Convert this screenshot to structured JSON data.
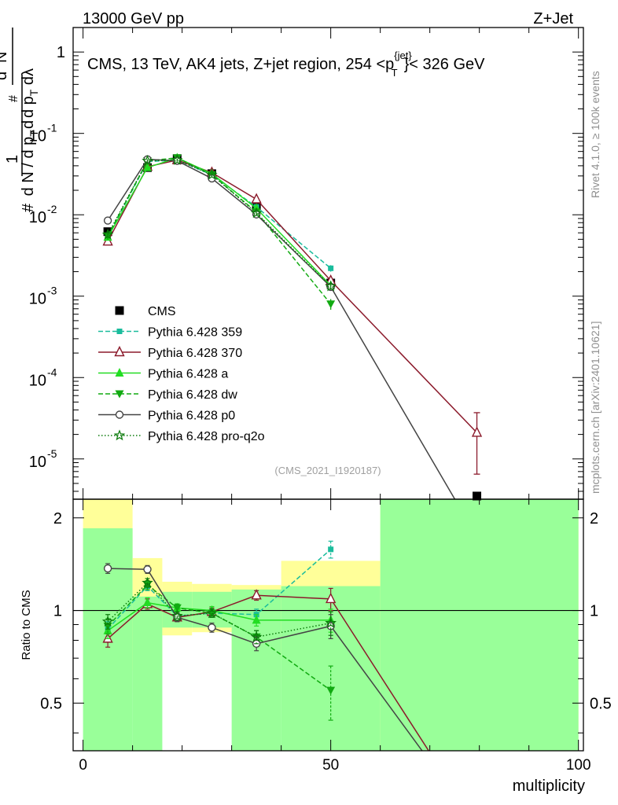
{
  "header": {
    "left": "13000 GeV pp",
    "right": "Z+Jet"
  },
  "chart_data": {
    "type": "line",
    "title": "CMS, 13 TeV, AK4 jets, Z+jet region, 254 <p_T^{jet}< 326 GeV",
    "title_parts": [
      "CMS, 13 TeV, AK4 jets, Z+jet region, 254 <p",
      "{jet}",
      "T",
      "}< 326 GeV"
    ],
    "xlabel": "multiplicity",
    "ylabel_top_parts": [
      "1",
      "#",
      "d N / d p",
      "T",
      "#",
      "d",
      "2",
      "N",
      "d p",
      "T",
      " dλ"
    ],
    "ylabel_bottom": "Ratio to CMS",
    "xlim": [
      -2,
      101
    ],
    "ylim_main": [
      3.2e-06,
      2.0
    ],
    "ylim_ratio": [
      0.35,
      2.3
    ],
    "x_ticks": [
      "0",
      "50",
      "100"
    ],
    "y_ticks_main": [
      "10^{-5}",
      "10^{-4}",
      "10^{-3}",
      "10^{-2}",
      "10^{-1}",
      "1"
    ],
    "y_ticks_ratio": [
      "0.5",
      "1",
      "2"
    ],
    "watermark": "(CMS_2021_I1920187)",
    "side_text_top": "Rivet 4.1.0, ≥ 100k events",
    "side_text_bottom": "mcplots.cern.ch [arXiv:2401.10621]",
    "bins": [
      [
        0,
        10
      ],
      [
        10,
        16
      ],
      [
        16,
        22
      ],
      [
        22,
        30
      ],
      [
        30,
        40
      ],
      [
        40,
        60
      ],
      [
        60,
        100
      ]
    ],
    "band_yellow": [
      [
        0.6,
        2.3
      ],
      [
        0.64,
        1.48
      ],
      [
        0.83,
        1.24
      ],
      [
        0.85,
        1.22
      ],
      [
        0.69,
        1.21
      ],
      [
        0.69,
        1.45
      ],
      [
        0.35,
        2.3
      ]
    ],
    "band_green": [
      [
        0.35,
        1.85
      ],
      [
        0.35,
        1.11
      ],
      [
        0.88,
        1.15
      ],
      [
        0.88,
        1.15
      ],
      [
        0.35,
        1.17
      ],
      [
        0.35,
        1.2
      ],
      [
        0.35,
        2.3
      ]
    ],
    "series": [
      {
        "name": "CMS",
        "color": "#000000",
        "marker": "square",
        "dash": "none",
        "x": [
          5,
          13,
          19,
          26,
          35,
          50,
          79.5
        ],
        "y": [
          0.0062,
          0.038,
          0.049,
          0.032,
          0.013,
          0.00145,
          3.5e-06
        ],
        "yerr_lo": [
          0.0006,
          0.003,
          0.003,
          0.002,
          0.001,
          0.00012,
          0
        ],
        "yerr_hi": [
          0.0006,
          0.003,
          0.003,
          0.002,
          0.001,
          0.00012,
          0
        ],
        "ratio": [
          1,
          1,
          1,
          1,
          1,
          1,
          1
        ]
      },
      {
        "name": "Pythia 6.428 359",
        "color": "#1abc9c",
        "marker": "square-small",
        "dash": "6,3",
        "x": [
          5,
          13,
          19,
          26,
          35,
          50
        ],
        "y": [
          0.0054,
          0.045,
          0.047,
          0.031,
          0.0125,
          0.0022
        ],
        "yerr_lo": [
          0.0003,
          0.002,
          0.002,
          0.0015,
          0.0007,
          0.0002
        ],
        "yerr_hi": [
          0.0003,
          0.002,
          0.002,
          0.0015,
          0.0007,
          0.0002
        ],
        "ratio": [
          0.87,
          1.2,
          0.96,
          0.98,
          0.97,
          1.58
        ],
        "ratio_err": [
          0.05,
          0.04,
          0.03,
          0.03,
          0.04,
          0.1
        ]
      },
      {
        "name": "Pythia 6.428 370",
        "color": "#8b1a2b",
        "marker": "triangle-open",
        "dash": "none",
        "x": [
          5,
          13,
          19,
          26,
          35,
          50,
          79.5
        ],
        "y": [
          0.0047,
          0.039,
          0.047,
          0.033,
          0.0155,
          0.00155,
          2.1e-05
        ],
        "yerr_lo": [
          0.0003,
          0.002,
          0.002,
          0.0015,
          0.0008,
          0.00015,
          1.45e-05
        ],
        "yerr_hi": [
          0.0003,
          0.002,
          0.002,
          0.0015,
          0.0008,
          0.00015,
          1.6e-05
        ],
        "ratio": [
          0.81,
          1.05,
          0.95,
          0.99,
          1.12,
          1.09,
          0.2
        ],
        "ratio_err": [
          0.05,
          0.04,
          0.03,
          0.03,
          0.04,
          0.09,
          0
        ]
      },
      {
        "name": "Pythia 6.428 a",
        "color": "#22dd22",
        "marker": "triangle",
        "dash": "none",
        "x": [
          5,
          13,
          19,
          26,
          35,
          50
        ],
        "y": [
          0.0053,
          0.038,
          0.05,
          0.032,
          0.012,
          0.00135
        ],
        "yerr_lo": [
          0.0003,
          0.002,
          0.002,
          0.0015,
          0.0007,
          0.00012
        ],
        "yerr_hi": [
          0.0003,
          0.002,
          0.002,
          0.0015,
          0.0007,
          0.00012
        ],
        "ratio": [
          0.86,
          1.06,
          1.02,
          1.0,
          0.93,
          0.93
        ],
        "ratio_err": [
          0.05,
          0.04,
          0.03,
          0.03,
          0.04,
          0.08
        ]
      },
      {
        "name": "Pythia 6.428 dw",
        "color": "#11aa11",
        "marker": "triangle-down",
        "dash": "6,3",
        "x": [
          5,
          13,
          19,
          26,
          35,
          50
        ],
        "y": [
          0.0055,
          0.046,
          0.05,
          0.031,
          0.0108,
          0.0008
        ],
        "yerr_lo": [
          0.0003,
          0.002,
          0.002,
          0.0015,
          0.0007,
          0.00012
        ],
        "yerr_hi": [
          0.0003,
          0.002,
          0.002,
          0.0015,
          0.0007,
          0.00012
        ],
        "ratio": [
          0.89,
          1.21,
          1.02,
          0.98,
          0.82,
          0.55
        ],
        "ratio_err": [
          0.05,
          0.04,
          0.03,
          0.03,
          0.04,
          0.11
        ]
      },
      {
        "name": "Pythia 6.428 p0",
        "color": "#444444",
        "marker": "circle-open",
        "dash": "none",
        "x": [
          5,
          13,
          19,
          26,
          35,
          50,
          79.5
        ],
        "y": [
          0.0085,
          0.048,
          0.046,
          0.028,
          0.0101,
          0.0013,
          1.1e-06
        ],
        "yerr_lo": [
          0.0004,
          0.002,
          0.002,
          0.0015,
          0.0006,
          0.00012,
          0
        ],
        "yerr_hi": [
          0.0004,
          0.002,
          0.002,
          0.0015,
          0.0006,
          0.00012,
          0
        ],
        "ratio": [
          1.37,
          1.36,
          0.95,
          0.88,
          0.78,
          0.89,
          0.2
        ],
        "ratio_err": [
          0.05,
          0.04,
          0.03,
          0.03,
          0.04,
          0.08,
          0
        ]
      },
      {
        "name": "Pythia 6.428 pro-q2o",
        "color": "#0b7a0b",
        "marker": "star-open",
        "dash": "1.5,2.5",
        "x": [
          5,
          13,
          19,
          26,
          35,
          50
        ],
        "y": [
          0.0057,
          0.046,
          0.047,
          0.031,
          0.0105,
          0.00132
        ],
        "yerr_lo": [
          0.0003,
          0.002,
          0.002,
          0.0015,
          0.0007,
          0.00012
        ],
        "yerr_hi": [
          0.0003,
          0.002,
          0.002,
          0.0015,
          0.0007,
          0.00012
        ],
        "ratio": [
          0.92,
          1.23,
          0.96,
          0.98,
          0.82,
          0.91
        ],
        "ratio_err": [
          0.05,
          0.04,
          0.03,
          0.03,
          0.04,
          0.08
        ]
      }
    ]
  }
}
